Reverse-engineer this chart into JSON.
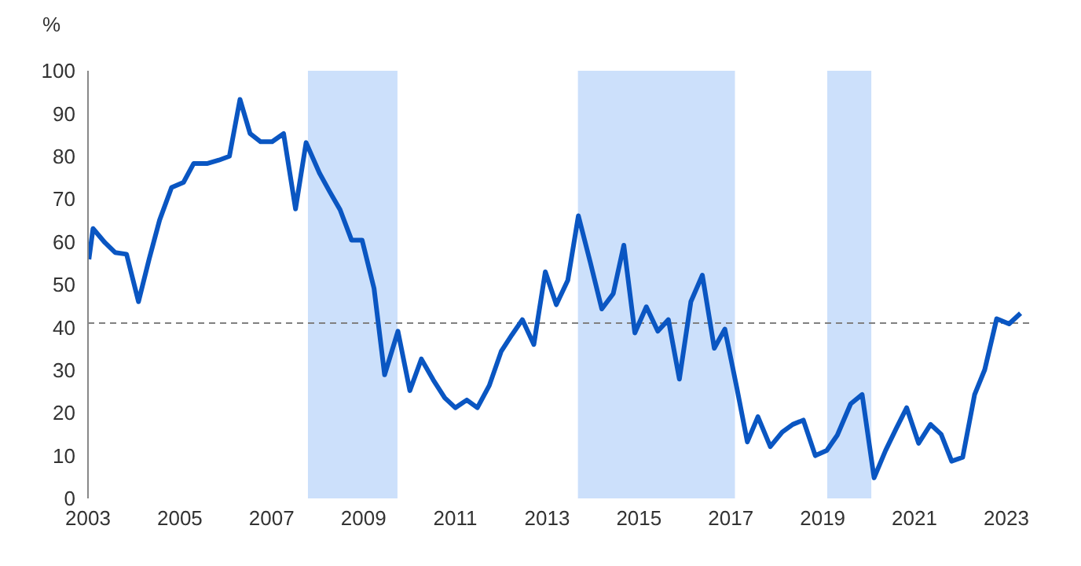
{
  "chart_data": {
    "type": "line",
    "ylabel": "%",
    "x": [
      2003.02,
      2003.11,
      2003.37,
      2003.59,
      2003.84,
      2004.1,
      2004.33,
      2004.56,
      2004.82,
      2005.08,
      2005.3,
      2005.59,
      2005.85,
      2006.08,
      2006.31,
      2006.53,
      2006.76,
      2007.01,
      2007.26,
      2007.52,
      2007.75,
      2008.04,
      2008.26,
      2008.49,
      2008.74,
      2008.97,
      2009.23,
      2009.46,
      2009.75,
      2010.01,
      2010.26,
      2010.52,
      2010.77,
      2011.0,
      2011.25,
      2011.48,
      2011.74,
      2012.0,
      2012.23,
      2012.46,
      2012.71,
      2012.96,
      2013.2,
      2013.45,
      2013.68,
      2013.94,
      2014.19,
      2014.44,
      2014.67,
      2014.91,
      2015.16,
      2015.41,
      2015.64,
      2015.88,
      2016.13,
      2016.38,
      2016.64,
      2016.87,
      2017.13,
      2017.36,
      2017.59,
      2017.86,
      2018.12,
      2018.35,
      2018.58,
      2018.84,
      2019.09,
      2019.32,
      2019.61,
      2019.86,
      2020.12,
      2020.37,
      2020.6,
      2020.83,
      2021.09,
      2021.35,
      2021.58,
      2021.81,
      2022.05,
      2022.31,
      2022.53,
      2022.79,
      2023.06,
      2023.31
    ],
    "series": [
      {
        "color": "#0a56c2",
        "values": [
          55.9,
          63.1,
          59.8,
          57.5,
          57.1,
          46,
          55.9,
          65.1,
          72.7,
          73.9,
          78.3,
          78.3,
          79.1,
          80,
          93.3,
          85.3,
          83.4,
          83.4,
          85.3,
          67.7,
          83.2,
          76.1,
          71.8,
          67.5,
          60.4,
          60.4,
          49.1,
          28.9,
          39.1,
          25.2,
          32.6,
          27.7,
          23.5,
          21.2,
          23,
          21.2,
          26.4,
          34.4,
          38.2,
          41.8,
          36,
          53,
          45.3,
          51,
          66.1,
          55.2,
          44.3,
          47.9,
          59.2,
          38.7,
          44.8,
          39.1,
          41.8,
          27.9,
          46,
          52.2,
          35.1,
          39.6,
          25.9,
          13.2,
          19.1,
          12.1,
          15.5,
          17.3,
          18.3,
          10,
          11.2,
          14.8,
          22.1,
          24.3,
          4.8,
          11.2,
          16.3,
          21.2,
          12.9,
          17.3,
          15,
          8.7,
          9.6,
          24.3,
          30.1,
          42,
          40.8,
          43.3
        ]
      }
    ],
    "xlim": [
      2003,
      2023.6
    ],
    "xticks": [
      2003,
      2005,
      2007,
      2009,
      2011,
      2013,
      2015,
      2017,
      2019,
      2021,
      2023
    ],
    "ylim": [
      0,
      100
    ],
    "yticks": [
      0,
      10,
      20,
      30,
      40,
      50,
      60,
      70,
      80,
      90,
      100
    ],
    "ref_lines": [
      {
        "axis": "y",
        "value": 41,
        "color": "#808080",
        "line_style": "dashed"
      }
    ],
    "bands": [
      {
        "axis": "x",
        "from": 2007.79,
        "to": 2009.74,
        "color": "#cce0fb"
      },
      {
        "axis": "x",
        "from": 2013.67,
        "to": 2017.09,
        "color": "#cce0fb"
      },
      {
        "axis": "x",
        "from": 2019.1,
        "to": 2020.06,
        "color": "#cce0fb"
      }
    ],
    "grid": false,
    "legend": false,
    "marker": "none",
    "line_style": "solid"
  }
}
